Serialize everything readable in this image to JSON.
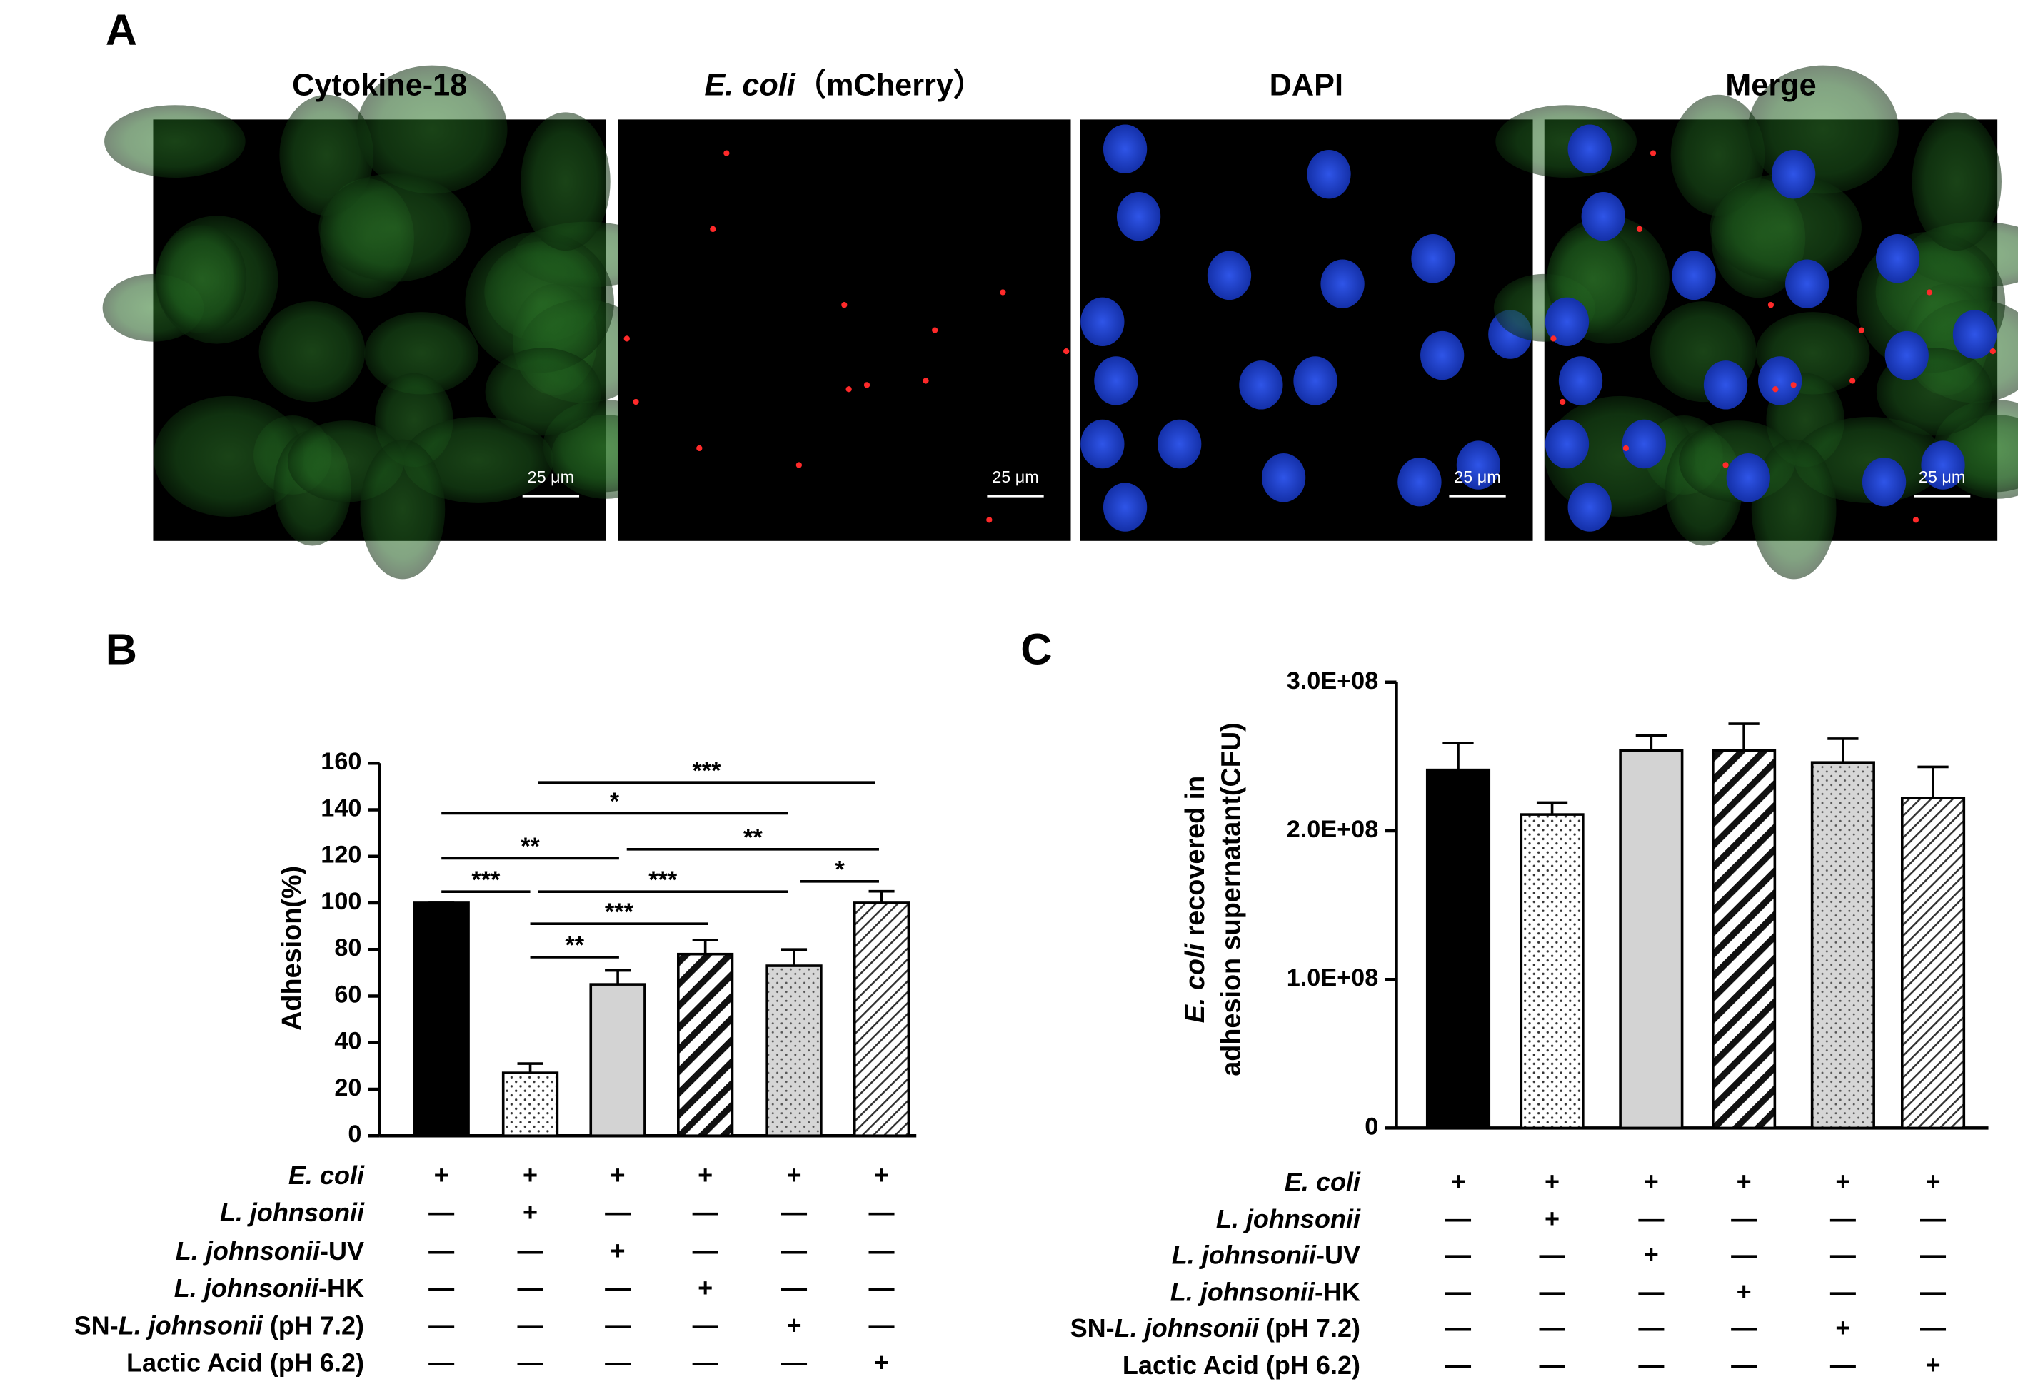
{
  "figure": {
    "panel_a": {
      "label": "A",
      "images": [
        {
          "title": [
            "Cytokine-18"
          ],
          "italic": [
            false
          ],
          "scale_bar": "25 μm"
        },
        {
          "title": [
            "E. coli",
            "（mCherry）"
          ],
          "italic": [
            true,
            false
          ],
          "scale_bar": "25 μm"
        },
        {
          "title": [
            "DAPI"
          ],
          "italic": [
            false
          ],
          "scale_bar": "25 μm"
        },
        {
          "title": [
            "Merge"
          ],
          "italic": [
            false
          ],
          "scale_bar": "25 μm"
        }
      ]
    }
  },
  "chart_data": [
    {
      "type": "bar",
      "panel": "B",
      "ylabel": [
        "Adhesion(%)"
      ],
      "ylabel_italic": [
        false
      ],
      "values": [
        100,
        27,
        65,
        78,
        73,
        100
      ],
      "errors": [
        0,
        4,
        6,
        6,
        7,
        5
      ],
      "patterns": [
        "solid",
        "dots",
        "gray",
        "stripes",
        "gray-dots",
        "hatch"
      ],
      "ylim": [
        0,
        160
      ],
      "yticks": [
        0,
        20,
        40,
        60,
        80,
        100,
        120,
        140,
        160
      ],
      "annotations": [
        "***",
        "*",
        "**",
        "**",
        "***",
        "***",
        "*",
        "***",
        "**"
      ],
      "conditions": [
        {
          "label": [
            "E. coli"
          ],
          "italic": [
            true
          ],
          "marks": [
            "+",
            "+",
            "+",
            "+",
            "+",
            "+"
          ]
        },
        {
          "label": [
            "L. johnsonii"
          ],
          "italic": [
            true
          ],
          "marks": [
            "—",
            "+",
            "—",
            "—",
            "—",
            "—"
          ]
        },
        {
          "label": [
            "L. johnsonii",
            "-UV"
          ],
          "italic": [
            true,
            false
          ],
          "marks": [
            "—",
            "—",
            "+",
            "—",
            "—",
            "—"
          ]
        },
        {
          "label": [
            "L. johnsonii",
            "-HK"
          ],
          "italic": [
            true,
            false
          ],
          "marks": [
            "—",
            "—",
            "—",
            "+",
            "—",
            "—"
          ]
        },
        {
          "label": [
            "SN-",
            "L. johnsonii",
            " (pH 7.2)"
          ],
          "italic": [
            false,
            true,
            false
          ],
          "marks": [
            "—",
            "—",
            "—",
            "—",
            "+",
            "—"
          ]
        },
        {
          "label": [
            "Lactic Acid (pH 6.2)"
          ],
          "italic": [
            false
          ],
          "marks": [
            "—",
            "—",
            "—",
            "—",
            "—",
            "+"
          ]
        }
      ]
    },
    {
      "type": "bar",
      "panel": "C",
      "ylabel": [
        "E. coli",
        " recovered in",
        "adhesion supernatant(CFU)"
      ],
      "ylabel_italic": [
        true,
        false,
        false
      ],
      "values": [
        241000000,
        211000000,
        254000000,
        254000000,
        246000000,
        222000000
      ],
      "errors": [
        18000000,
        8000000,
        10000000,
        18000000,
        16000000,
        21000000
      ],
      "patterns": [
        "solid",
        "dots",
        "gray",
        "stripes",
        "gray-dots",
        "hatch"
      ],
      "ylim": [
        0,
        300000000
      ],
      "yticks": [
        0,
        {
          "value": 100000000,
          "label": "1.0E+08"
        },
        {
          "value": 200000000,
          "label": "2.0E+08"
        },
        {
          "value": 300000000,
          "label": "3.0E+08"
        }
      ],
      "conditions": [
        {
          "label": [
            "E. coli"
          ],
          "italic": [
            true
          ],
          "marks": [
            "+",
            "+",
            "+",
            "+",
            "+",
            "+"
          ]
        },
        {
          "label": [
            "L. johnsonii"
          ],
          "italic": [
            true
          ],
          "marks": [
            "—",
            "+",
            "—",
            "—",
            "—",
            "—"
          ]
        },
        {
          "label": [
            "L. johnsonii",
            "-UV"
          ],
          "italic": [
            true,
            false
          ],
          "marks": [
            "—",
            "—",
            "+",
            "—",
            "—",
            "—"
          ]
        },
        {
          "label": [
            "L. johnsonii",
            "-HK"
          ],
          "italic": [
            true,
            false
          ],
          "marks": [
            "—",
            "—",
            "—",
            "+",
            "—",
            "—"
          ]
        },
        {
          "label": [
            "SN-",
            "L. johnsonii",
            " (pH 7.2)"
          ],
          "italic": [
            false,
            true,
            false
          ],
          "marks": [
            "—",
            "—",
            "—",
            "—",
            "+",
            "—"
          ]
        },
        {
          "label": [
            "Lactic Acid (pH 6.2)"
          ],
          "italic": [
            false
          ],
          "marks": [
            "—",
            "—",
            "—",
            "—",
            "—",
            "+"
          ]
        }
      ]
    }
  ]
}
